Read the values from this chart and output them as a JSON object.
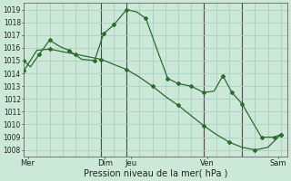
{
  "xlabel": "Pression niveau de la mer( hPa )",
  "bg_color": "#cce8d8",
  "grid_color": "#aacfbe",
  "line_color": "#2d6a2d",
  "vline_color": "#4a4a4a",
  "ylim": [
    1007.5,
    1019.5
  ],
  "yticks": [
    1008,
    1009,
    1010,
    1011,
    1012,
    1013,
    1014,
    1015,
    1016,
    1017,
    1018,
    1019
  ],
  "xlim": [
    0,
    20.5
  ],
  "day_labels": [
    "Mer",
    "Dim",
    "Jeu",
    "Ven",
    "Sam"
  ],
  "day_positions": [
    0.3,
    6.3,
    8.3,
    14.3,
    19.8
  ],
  "series1_x": [
    0,
    0.5,
    1.2,
    2.0,
    2.8,
    3.5,
    4.5,
    5.5,
    6.2,
    7.0,
    8.0,
    8.8,
    9.5,
    10.5,
    11.2,
    12.0,
    13.0,
    14.0,
    14.8,
    15.5,
    16.2,
    17.0,
    17.8,
    18.5,
    19.5,
    20.0
  ],
  "series1_y": [
    1015.0,
    1014.5,
    1015.5,
    1016.6,
    1016.1,
    1015.8,
    1015.1,
    1015.0,
    1017.1,
    1017.8,
    1019.0,
    1018.8,
    1018.3,
    1015.5,
    1013.6,
    1013.2,
    1013.0,
    1012.5,
    1012.6,
    1013.8,
    1012.5,
    1011.6,
    1010.2,
    1009.0,
    1009.0,
    1009.2
  ],
  "series2_x": [
    0,
    1,
    2,
    3,
    4,
    5,
    6,
    7,
    8,
    9,
    10,
    11,
    12,
    13,
    14,
    15,
    16,
    17,
    18,
    19,
    20
  ],
  "series2_y": [
    1014.2,
    1015.8,
    1015.9,
    1015.7,
    1015.5,
    1015.3,
    1015.1,
    1014.7,
    1014.3,
    1013.7,
    1013.0,
    1012.2,
    1011.5,
    1010.7,
    1009.9,
    1009.2,
    1008.6,
    1008.2,
    1008.0,
    1008.2,
    1009.2
  ],
  "vline_positions": [
    6,
    8,
    14,
    17
  ],
  "markers1_x": [
    0,
    1.2,
    2.0,
    3.5,
    5.5,
    6.2,
    7.0,
    8.0,
    9.5,
    11.2,
    12.0,
    13.0,
    14.0,
    15.5,
    16.2,
    17.0,
    18.5,
    19.5,
    20.0
  ],
  "markers1_y": [
    1015.0,
    1015.5,
    1016.6,
    1015.8,
    1015.0,
    1017.1,
    1017.8,
    1019.0,
    1018.3,
    1013.6,
    1013.2,
    1013.0,
    1012.5,
    1013.8,
    1012.5,
    1011.6,
    1009.0,
    1009.0,
    1009.2
  ],
  "markers2_x": [
    0,
    2,
    4,
    6,
    8,
    10,
    12,
    14,
    16,
    18,
    20
  ],
  "markers2_y": [
    1014.2,
    1015.9,
    1015.5,
    1015.1,
    1014.3,
    1013.0,
    1011.5,
    1009.9,
    1008.6,
    1008.0,
    1009.2
  ],
  "yticklabel_fontsize": 5.5,
  "xticklabel_fontsize": 6.0,
  "xlabel_fontsize": 7.0
}
